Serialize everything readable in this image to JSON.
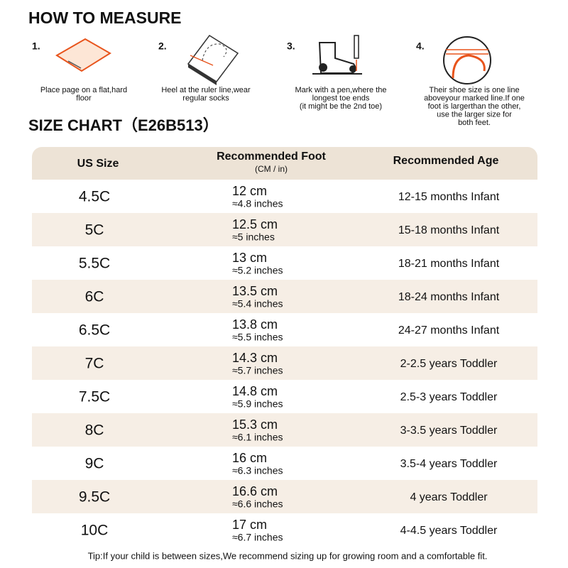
{
  "measure": {
    "title": "HOW TO MEASURE",
    "steps": [
      {
        "number": "1.",
        "lines": [
          "Place page on a flat,hard",
          "floor"
        ]
      },
      {
        "number": "2.",
        "lines": [
          "Heel at the ruler line,wear",
          "regular socks"
        ]
      },
      {
        "number": "3.",
        "lines": [
          "Mark with a pen,where the",
          "longest toe ends",
          "(it might be the 2nd toe)"
        ]
      },
      {
        "number": "4.",
        "lines": [
          "Their shoe size is one line",
          "aboveyour marked line.If one",
          "foot is largerthan the other,",
          "use the larger size for",
          "both feet."
        ]
      }
    ]
  },
  "size_chart": {
    "title": "SIZE CHART（E26B513）",
    "header": {
      "size": "US Size",
      "foot": "Recommended Foot",
      "foot_unit": "(CM / in)",
      "age": "Recommended Age"
    },
    "rows": [
      {
        "size": "4.5C",
        "cm": "12 cm",
        "inches": "≈4.8 inches",
        "age": "12-15 months Infant"
      },
      {
        "size": "5C",
        "cm": "12.5 cm",
        "inches": "≈5 inches",
        "age": "15-18 months Infant"
      },
      {
        "size": "5.5C",
        "cm": "13 cm",
        "inches": "≈5.2 inches",
        "age": "18-21 months Infant"
      },
      {
        "size": "6C",
        "cm": "13.5 cm",
        "inches": "≈5.4 inches",
        "age": "18-24 months Infant"
      },
      {
        "size": "6.5C",
        "cm": "13.8 cm",
        "inches": "≈5.5 inches",
        "age": "24-27 months Infant"
      },
      {
        "size": "7C",
        "cm": "14.3 cm",
        "inches": "≈5.7 inches",
        "age": "2-2.5 years Toddler"
      },
      {
        "size": "7.5C",
        "cm": "14.8 cm",
        "inches": "≈5.9 inches",
        "age": "2.5-3 years Toddler"
      },
      {
        "size": "8C",
        "cm": "15.3 cm",
        "inches": "≈6.1 inches",
        "age": "3-3.5 years Toddler"
      },
      {
        "size": "9C",
        "cm": "16 cm",
        "inches": "≈6.3 inches",
        "age": "3.5-4 years Toddler"
      },
      {
        "size": "9.5C",
        "cm": "16.6 cm",
        "inches": "≈6.6 inches",
        "age": "4 years Toddler"
      },
      {
        "size": "10C",
        "cm": "17 cm",
        "inches": "≈6.7 inches",
        "age": "4-4.5 years Toddler"
      }
    ],
    "tip": "Tip:If your child is between sizes,We recommend sizing up for growing room and a comfortable fit."
  }
}
